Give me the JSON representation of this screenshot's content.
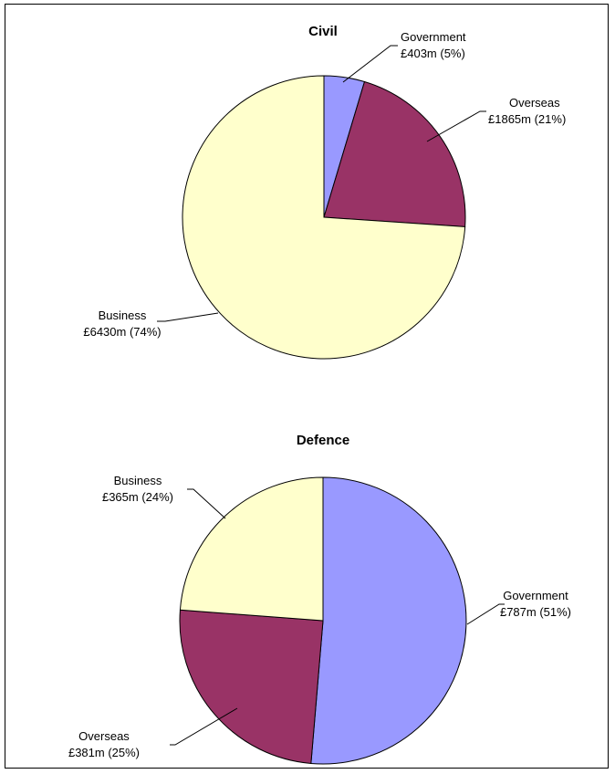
{
  "chart_data": [
    {
      "type": "pie",
      "title": "Civil",
      "slices": [
        {
          "name": "Government",
          "value": 403,
          "value_label": "£403m (5%)",
          "percent": 5,
          "color": "#9999ff"
        },
        {
          "name": "Overseas",
          "value": 1865,
          "value_label": "£1865m (21%)",
          "percent": 21,
          "color": "#993366"
        },
        {
          "name": "Business",
          "value": 6430,
          "value_label": "£6430m (74%)",
          "percent": 74,
          "color": "#ffffcc"
        }
      ]
    },
    {
      "type": "pie",
      "title": "Defence",
      "slices": [
        {
          "name": "Government",
          "value": 787,
          "value_label": "£787m (51%)",
          "percent": 51,
          "color": "#9999ff"
        },
        {
          "name": "Overseas",
          "value": 381,
          "value_label": "£381m (25%)",
          "percent": 25,
          "color": "#993366"
        },
        {
          "name": "Business",
          "value": 365,
          "value_label": "£365m (24%)",
          "percent": 24,
          "color": "#ffffcc"
        }
      ]
    }
  ]
}
